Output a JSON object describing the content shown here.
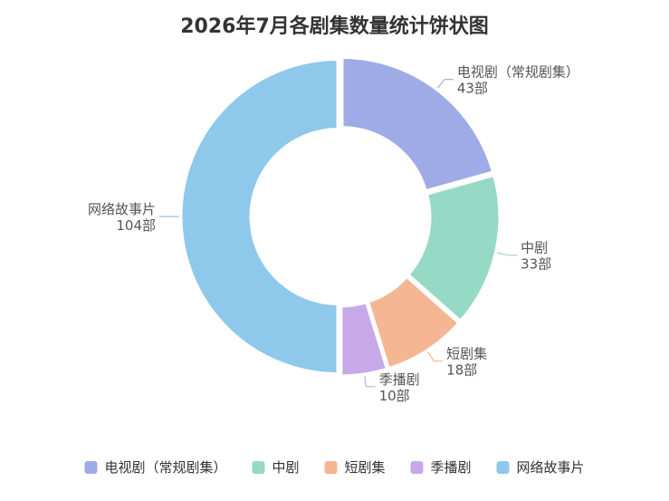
{
  "chart_data": {
    "type": "pie",
    "title": "2026年7月各剧集数量统计饼状图",
    "unit": "部",
    "categories": [
      "电视剧（常规剧集）",
      "中剧",
      "短剧集",
      "季播剧",
      "网络故事片"
    ],
    "values": [
      43,
      33,
      18,
      10,
      104
    ],
    "colors": [
      "#9fabe6",
      "#96d9c4",
      "#f5b693",
      "#c9a8ea",
      "#8ec8ea"
    ],
    "legend": "bottom",
    "donut": true
  }
}
